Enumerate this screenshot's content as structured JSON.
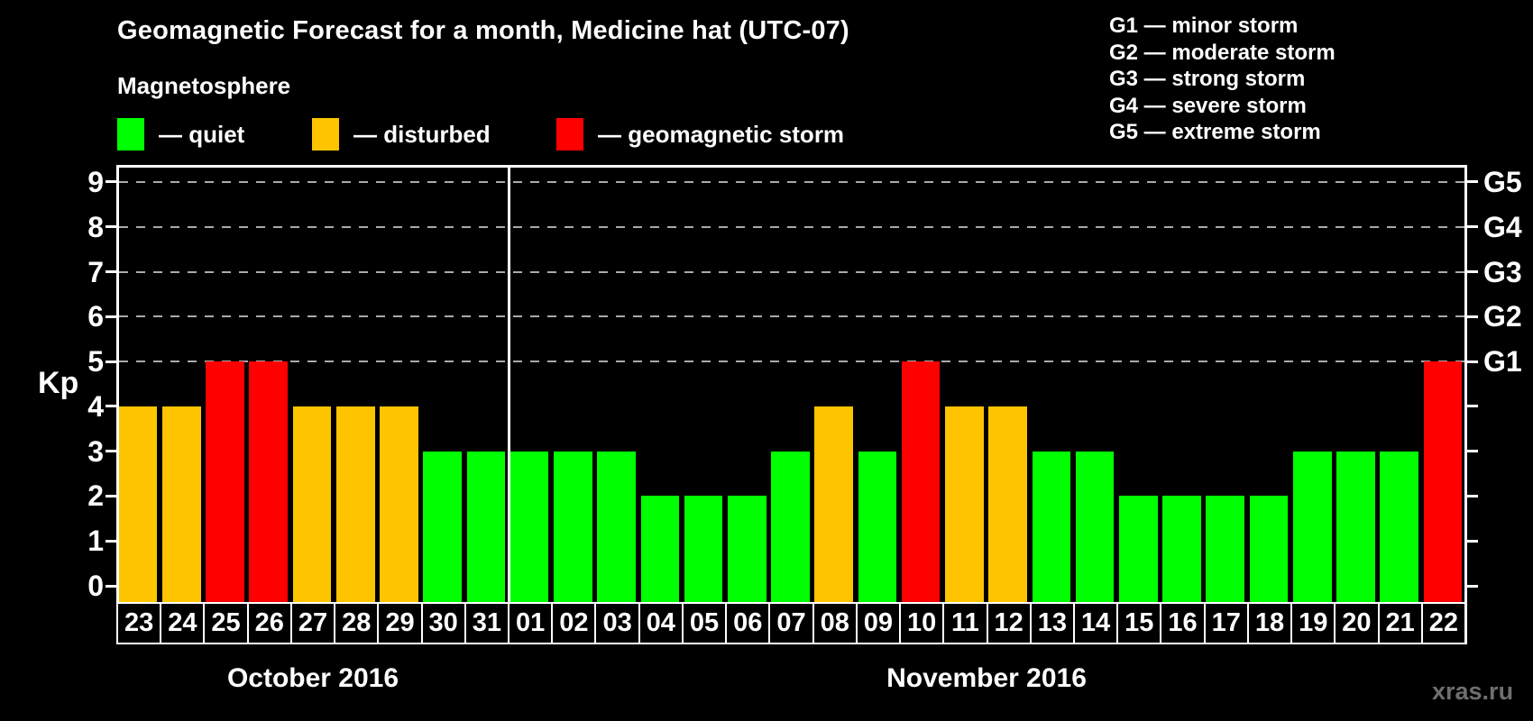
{
  "title": "Geomagnetic Forecast for a month, Medicine hat (UTC-07)",
  "subtitle": "Magnetosphere",
  "legend": [
    {
      "key": "quiet",
      "label": "— quiet",
      "color": "#00ff00"
    },
    {
      "key": "disturbed",
      "label": "— disturbed",
      "color": "#ffc400"
    },
    {
      "key": "storm",
      "label": "— geomagnetic storm",
      "color": "#ff0000"
    }
  ],
  "g_legend": [
    "G1 — minor storm",
    "G2 — moderate storm",
    "G3 — strong storm",
    "G4 — severe storm",
    "G5 — extreme storm"
  ],
  "y_axis": {
    "label": "Kp",
    "ticks": [
      0,
      1,
      2,
      3,
      4,
      5,
      6,
      7,
      8,
      9
    ]
  },
  "right_axis": {
    "labels": [
      {
        "kp": 5,
        "text": "G1"
      },
      {
        "kp": 6,
        "text": "G2"
      },
      {
        "kp": 7,
        "text": "G3"
      },
      {
        "kp": 8,
        "text": "G4"
      },
      {
        "kp": 9,
        "text": "G5"
      }
    ]
  },
  "months": [
    {
      "label": "October 2016",
      "days": 9
    },
    {
      "label": "November 2016",
      "days": 22
    }
  ],
  "watermark": "xras.ru",
  "chart_data": {
    "type": "bar",
    "title": "Geomagnetic Forecast for a month, Medicine hat (UTC-07)",
    "ylabel": "Kp",
    "ylim": [
      0,
      9
    ],
    "grid": "dashed horizontal at Kp 5-9 only",
    "legend_position": "top-left",
    "gridlines_at": [
      5,
      6,
      7,
      8,
      9
    ],
    "categories": [
      "23",
      "24",
      "25",
      "26",
      "27",
      "28",
      "29",
      "30",
      "31",
      "01",
      "02",
      "03",
      "04",
      "05",
      "06",
      "07",
      "08",
      "09",
      "10",
      "11",
      "12",
      "13",
      "14",
      "15",
      "16",
      "17",
      "18",
      "19",
      "20",
      "21",
      "22"
    ],
    "values": [
      4,
      4,
      5,
      5,
      4,
      4,
      4,
      3,
      3,
      3,
      3,
      3,
      2,
      2,
      2,
      3,
      4,
      3,
      5,
      4,
      4,
      3,
      3,
      2,
      2,
      2,
      2,
      3,
      3,
      3,
      5
    ],
    "statuses": [
      "disturbed",
      "disturbed",
      "storm",
      "storm",
      "disturbed",
      "disturbed",
      "disturbed",
      "quiet",
      "quiet",
      "quiet",
      "quiet",
      "quiet",
      "quiet",
      "quiet",
      "quiet",
      "quiet",
      "disturbed",
      "quiet",
      "storm",
      "disturbed",
      "disturbed",
      "quiet",
      "quiet",
      "quiet",
      "quiet",
      "quiet",
      "quiet",
      "quiet",
      "quiet",
      "quiet",
      "storm"
    ]
  }
}
